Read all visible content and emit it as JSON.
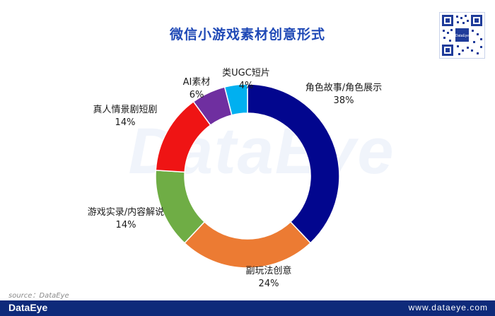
{
  "brand": {
    "watermark": "DataEye",
    "footer_logo": "DataEye",
    "footer_url": "www.dataeye.com",
    "qr_label": "DataEye"
  },
  "source": "source：DataEye",
  "chart_data": {
    "type": "pie",
    "donut": true,
    "title": "微信小游戏素材创意形式",
    "categories": [
      "角色故事/角色展示",
      "副玩法创意",
      "游戏实录/内容解说",
      "真人情景剧短剧",
      "AI素材",
      "类UGC短片"
    ],
    "values": [
      38,
      24,
      14,
      14,
      6,
      4
    ],
    "value_labels": [
      "38%",
      "24%",
      "14%",
      "14%",
      "6%",
      "4%"
    ],
    "colors": [
      "#02068e",
      "#ec7b33",
      "#6fad45",
      "#ef1414",
      "#6f2fa0",
      "#00b0f0"
    ]
  }
}
